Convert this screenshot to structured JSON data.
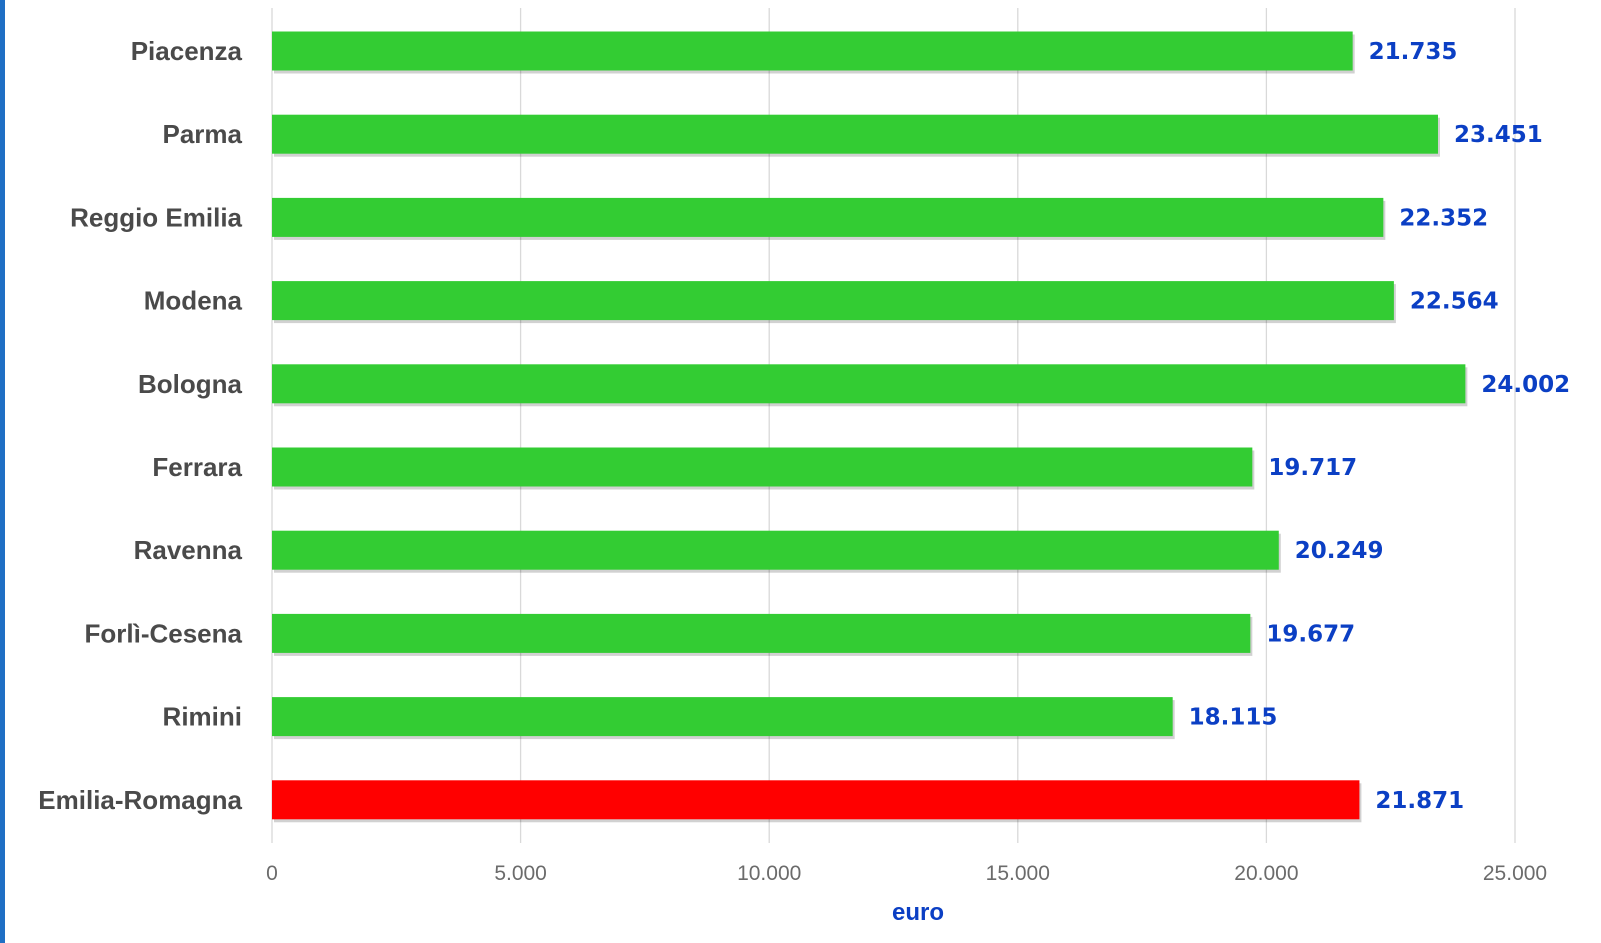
{
  "chart_data": {
    "type": "bar",
    "orientation": "horizontal",
    "categories": [
      "Piacenza",
      "Parma",
      "Reggio Emilia",
      "Modena",
      "Bologna",
      "Ferrara",
      "Ravenna",
      "Forlì-Cesena",
      "Rimini",
      "Emilia-Romagna"
    ],
    "values": [
      21735,
      23451,
      22352,
      22564,
      24002,
      19717,
      20249,
      19677,
      18115,
      21871
    ],
    "value_labels": [
      "21.735",
      "23.451",
      "22.352",
      "22.564",
      "24.002",
      "19.717",
      "20.249",
      "19.677",
      "18.115",
      "21.871"
    ],
    "bar_colors": [
      "#33cc33",
      "#33cc33",
      "#33cc33",
      "#33cc33",
      "#33cc33",
      "#33cc33",
      "#33cc33",
      "#33cc33",
      "#33cc33",
      "#ff0000"
    ],
    "xlim": [
      0,
      25000
    ],
    "xticks": [
      0,
      5000,
      10000,
      15000,
      20000,
      25000
    ],
    "xtick_labels": [
      "0",
      "5.000",
      "10.000",
      "15.000",
      "20.000",
      "25.000"
    ],
    "xlabel": "euro",
    "ylabel": "",
    "title": "",
    "grid": "vertical",
    "value_label_color": "#0b3fc4",
    "axis_title_color": "#0b3fc4",
    "frame_color": "#1f6fc4"
  }
}
